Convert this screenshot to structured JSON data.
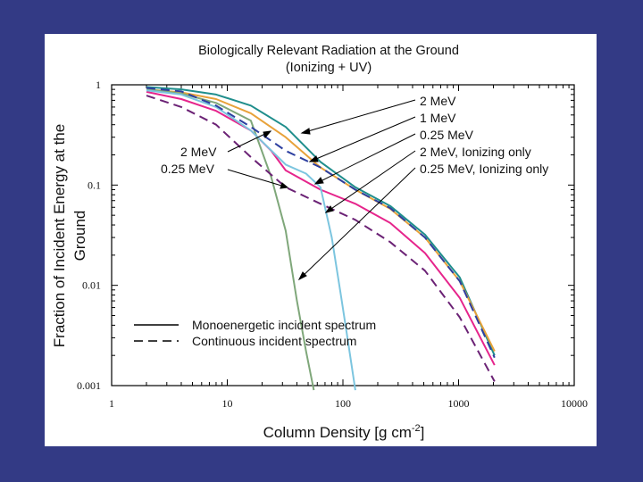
{
  "chart_data": {
    "type": "line",
    "title": [
      "Biologically Relevant Radiation at the Ground",
      "(Ionizing + UV)"
    ],
    "xlabel": "Column Density [g cm",
    "xlabel_sup": "-2",
    "xlabel_close": "]",
    "ylabel": [
      "Fraction of Incident Energy at the",
      "Ground"
    ],
    "xscale": "log",
    "yscale": "log",
    "xlim": [
      1,
      10000
    ],
    "ylim": [
      0.001,
      1
    ],
    "xticklabels": [
      "1",
      "10",
      "100",
      "1000",
      "10000"
    ],
    "xtickvalues": [
      1,
      10,
      100,
      1000,
      10000
    ],
    "yticklabels": [
      "1",
      "0.1",
      "0.01",
      "0.001"
    ],
    "ytickvalues": [
      1,
      0.1,
      0.01,
      0.001
    ],
    "series": [
      {
        "name": "2 MeV",
        "style": "solid",
        "color": "#1f8e8c",
        "x": [
          2,
          4,
          8,
          16,
          32,
          64,
          128,
          256,
          512,
          1024,
          2048
        ],
        "y": [
          0.95,
          0.9,
          0.8,
          0.62,
          0.38,
          0.17,
          0.095,
          0.062,
          0.032,
          0.012,
          0.002
        ]
      },
      {
        "name": "1 MeV",
        "style": "solid",
        "color": "#e8a23a",
        "x": [
          2,
          4,
          8,
          16,
          32,
          64,
          128,
          256,
          512,
          1024,
          2048
        ],
        "y": [
          0.9,
          0.84,
          0.72,
          0.52,
          0.3,
          0.15,
          0.09,
          0.058,
          0.03,
          0.011,
          0.0022
        ]
      },
      {
        "name": "0.25 MeV",
        "style": "solid",
        "color": "#e6258c",
        "x": [
          2,
          4,
          8,
          16,
          24,
          32,
          64,
          128,
          256,
          512,
          1024,
          2048
        ],
        "y": [
          0.85,
          0.72,
          0.55,
          0.35,
          0.22,
          0.14,
          0.09,
          0.065,
          0.042,
          0.021,
          0.0075,
          0.0016
        ]
      },
      {
        "name": "2 MeV, Ionizing only",
        "style": "solid",
        "color": "#7fa77a",
        "x": [
          2,
          4,
          8,
          16,
          24,
          32,
          40,
          48,
          56
        ],
        "y": [
          0.9,
          0.82,
          0.66,
          0.44,
          0.12,
          0.035,
          0.007,
          0.0022,
          0.0009
        ]
      },
      {
        "name": "0.25 MeV, Ionizing only",
        "style": "solid",
        "color": "#7cc5df",
        "x": [
          2,
          4,
          8,
          16,
          32,
          48,
          64,
          80,
          96,
          112,
          128
        ],
        "y": [
          0.88,
          0.8,
          0.6,
          0.35,
          0.16,
          0.13,
          0.095,
          0.03,
          0.008,
          0.0025,
          0.0009
        ]
      },
      {
        "name": "2 MeV continuous",
        "style": "dashed",
        "color": "#2d3fa0",
        "x": [
          2,
          4,
          8,
          16,
          32,
          64,
          128,
          256,
          512,
          1024,
          2048
        ],
        "y": [
          0.93,
          0.86,
          0.62,
          0.38,
          0.22,
          0.15,
          0.09,
          0.059,
          0.03,
          0.011,
          0.0019
        ]
      },
      {
        "name": "0.25 MeV continuous",
        "style": "dashed",
        "color": "#6b2275",
        "x": [
          2,
          4,
          8,
          16,
          32,
          64,
          128,
          256,
          512,
          1024,
          2048
        ],
        "y": [
          0.78,
          0.6,
          0.4,
          0.19,
          0.095,
          0.065,
          0.045,
          0.027,
          0.014,
          0.0048,
          0.0011
        ]
      }
    ],
    "annotations_right": [
      "2 MeV",
      "1 MeV",
      "0.25 MeV",
      "2 MeV, Ionizing only",
      "0.25 MeV, Ionizing only"
    ],
    "annotations_left": [
      "2 MeV",
      "0.25 MeV"
    ],
    "legend": [
      {
        "label": "Monoenergetic incident spectrum",
        "style": "solid"
      },
      {
        "label": "Continuous incident spectrum",
        "style": "dashed"
      }
    ],
    "legend_position": "bottom-left",
    "colors": {
      "background": "#333a85",
      "panel": "#ffffff",
      "axis": "#000000",
      "annot_line": "#000000"
    }
  }
}
